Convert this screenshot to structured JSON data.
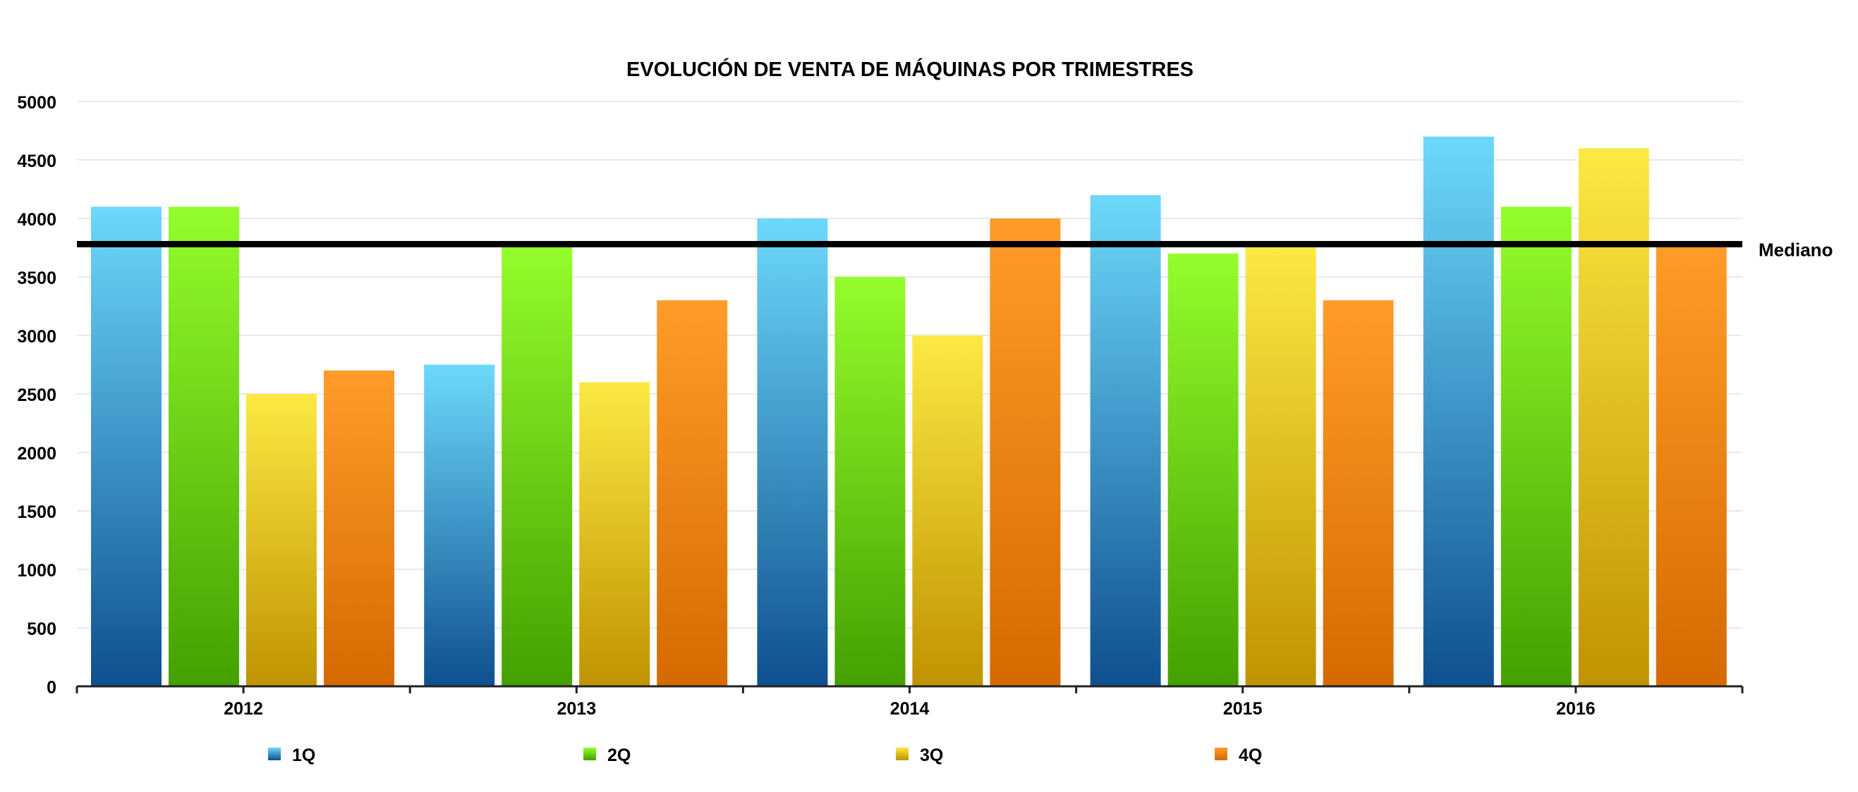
{
  "chart_data": {
    "type": "bar",
    "title": "EVOLUCIÓN DE VENTA DE MÁQUINAS POR TRIMESTRES",
    "xlabel": "",
    "ylabel": "",
    "categories": [
      "2012",
      "2013",
      "2014",
      "2015",
      "2016"
    ],
    "series": [
      {
        "name": "1Q",
        "values": [
          4100,
          2750,
          4000,
          4200,
          4700
        ],
        "color_top": "#6dd9fb",
        "color_bottom": "#0f4f8f"
      },
      {
        "name": "2Q",
        "values": [
          4100,
          3780,
          3500,
          3700,
          4100
        ],
        "color_top": "#95fd2c",
        "color_bottom": "#44a000"
      },
      {
        "name": "3Q",
        "values": [
          2500,
          2600,
          3000,
          3780,
          4600
        ],
        "color_top": "#fce944",
        "color_bottom": "#c09300"
      },
      {
        "name": "4Q",
        "values": [
          2700,
          3300,
          4000,
          3300,
          3780
        ],
        "color_top": "#ff9c2a",
        "color_bottom": "#d56a00"
      }
    ],
    "ylim": [
      0,
      5000
    ],
    "yticks": [
      0,
      500,
      1000,
      1500,
      2000,
      2500,
      3000,
      3500,
      4000,
      4500,
      5000
    ],
    "grid": true,
    "legend_position": "bottom",
    "reference_line": {
      "label": "Mediano",
      "value": 3780
    }
  }
}
